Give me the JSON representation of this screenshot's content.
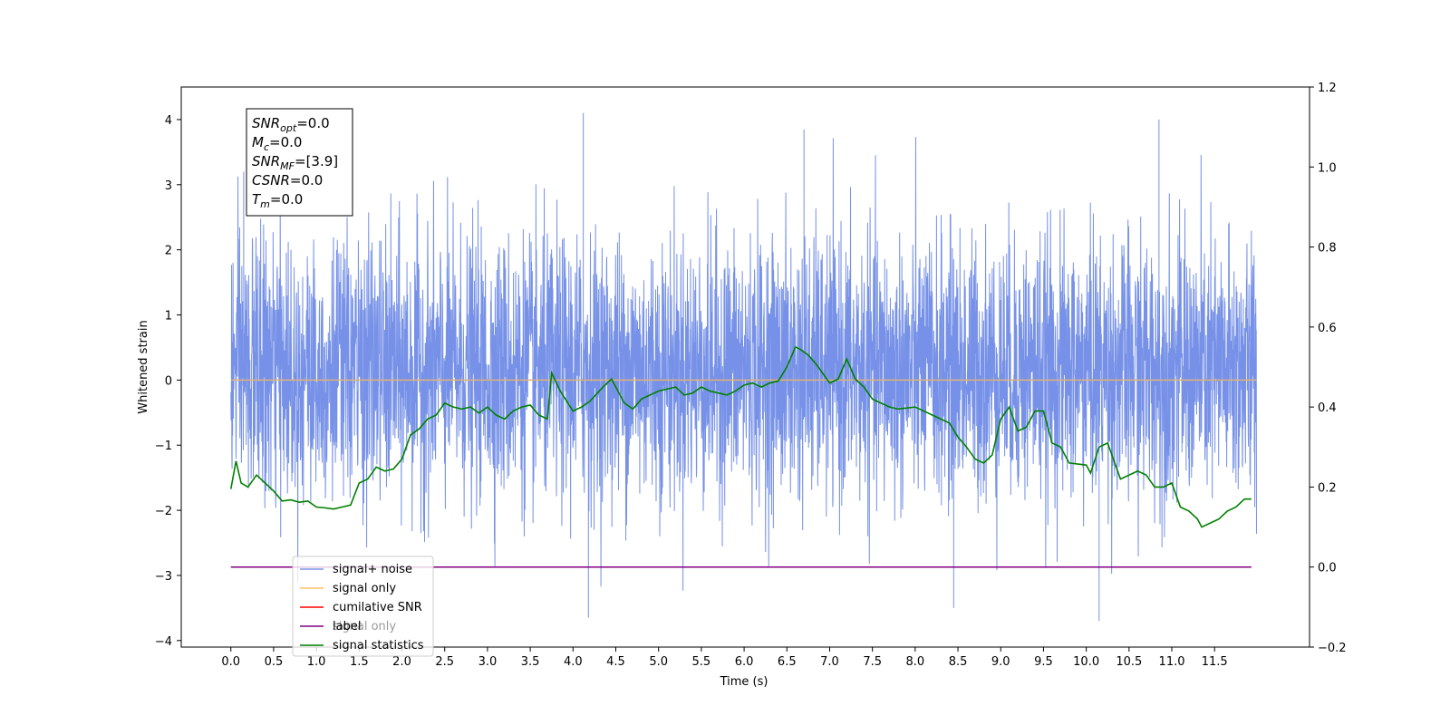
{
  "chart_data": {
    "type": "line",
    "xlabel": "Time (s)",
    "ylabel": "Whitened strain",
    "xlim": [
      -0.58,
      12.61
    ],
    "ylim": [
      -4.1,
      4.5
    ],
    "y2lim": [
      -0.2,
      1.2
    ],
    "x_ticks": [
      "0.0",
      "0.5",
      "1.0",
      "1.5",
      "2.0",
      "2.5",
      "3.0",
      "3.5",
      "4.0",
      "4.5",
      "5.0",
      "5.5",
      "6.0",
      "6.5",
      "7.0",
      "7.5",
      "8.0",
      "8.5",
      "9.0",
      "9.5",
      "10.0",
      "10.5",
      "11.0",
      "11.5"
    ],
    "y_ticks": [
      "4",
      "3",
      "2",
      "1",
      "0",
      "−1",
      "−2",
      "−3",
      "−4"
    ],
    "y2_ticks": [
      "1.2",
      "1.0",
      "0.8",
      "0.6",
      "0.4",
      "0.2",
      "0.0",
      "−0.2"
    ],
    "annotation": [
      {
        "base": "SNR",
        "sub": "opt",
        "rest": "=0.0"
      },
      {
        "base": "M",
        "sub": "c",
        "rest": "=0.0"
      },
      {
        "base": "SNR",
        "sub": "MF",
        "rest": "=[3.9]"
      },
      {
        "base": "CSNR",
        "sub": "",
        "rest": "=0.0"
      },
      {
        "base": "T",
        "sub": "m",
        "rest": "=0.0"
      }
    ],
    "legend": {
      "location": "lower-left",
      "entries": [
        {
          "label": "signal+ noise",
          "color": "#7b94e6"
        },
        {
          "label": "signal only",
          "color": "#ffbf66"
        },
        {
          "label": "cumilative SNR",
          "color": "#ff0000"
        },
        {
          "label": "label",
          "color": "#800080"
        },
        {
          "label": "signal statistics",
          "color": "#008000"
        }
      ],
      "hidden_entry": "signal only"
    },
    "series": [
      {
        "name": "signal+ noise",
        "axis": "left",
        "color": "#6f8be6",
        "x_range": [
          0.0,
          11.99
        ],
        "description_envelope": "noise fluctuating roughly between -3.6 and 4.1",
        "notable_spikes": [
          [
            4.12,
            4.1
          ],
          [
            10.85,
            4.0
          ],
          [
            6.7,
            3.85
          ],
          [
            0.15,
            3.2
          ],
          [
            4.18,
            -3.65
          ],
          [
            10.15,
            -3.7
          ],
          [
            8.45,
            -3.5
          ]
        ]
      },
      {
        "name": "signal only",
        "axis": "left",
        "color": "#e0b27a",
        "x": [
          0.0,
          11.99
        ],
        "y": [
          0.0,
          0.0
        ]
      },
      {
        "name": "label",
        "axis": "right",
        "color": "#800080",
        "x": [
          0.0,
          11.93
        ],
        "y": [
          0.0,
          0.0
        ]
      },
      {
        "name": "signal statistics",
        "axis": "right",
        "color": "#008000",
        "x": [
          0.0,
          0.06,
          0.12,
          0.2,
          0.3,
          0.4,
          0.5,
          0.6,
          0.7,
          0.8,
          0.9,
          1.0,
          1.1,
          1.2,
          1.3,
          1.4,
          1.5,
          1.6,
          1.7,
          1.8,
          1.9,
          2.0,
          2.1,
          2.2,
          2.3,
          2.4,
          2.5,
          2.6,
          2.7,
          2.8,
          2.9,
          3.0,
          3.1,
          3.2,
          3.3,
          3.4,
          3.5,
          3.6,
          3.7,
          3.75,
          3.85,
          4.0,
          4.1,
          4.2,
          4.35,
          4.45,
          4.6,
          4.7,
          4.8,
          5.0,
          5.1,
          5.2,
          5.3,
          5.4,
          5.5,
          5.6,
          5.7,
          5.8,
          5.9,
          6.0,
          6.1,
          6.2,
          6.3,
          6.4,
          6.5,
          6.6,
          6.65,
          6.75,
          6.85,
          7.0,
          7.1,
          7.2,
          7.3,
          7.4,
          7.5,
          7.6,
          7.7,
          7.8,
          8.0,
          8.2,
          8.4,
          8.5,
          8.6,
          8.7,
          8.8,
          8.9,
          9.0,
          9.1,
          9.2,
          9.3,
          9.4,
          9.5,
          9.6,
          9.7,
          9.8,
          10.0,
          10.05,
          10.15,
          10.25,
          10.4,
          10.6,
          10.7,
          10.8,
          10.9,
          11.0,
          11.1,
          11.2,
          11.3,
          11.35,
          11.45,
          11.55,
          11.65,
          11.75,
          11.85,
          11.93
        ],
        "y": [
          0.195,
          0.265,
          0.21,
          0.2,
          0.23,
          0.21,
          0.19,
          0.165,
          0.168,
          0.162,
          0.165,
          0.15,
          0.148,
          0.145,
          0.15,
          0.155,
          0.21,
          0.22,
          0.25,
          0.24,
          0.245,
          0.27,
          0.33,
          0.345,
          0.37,
          0.38,
          0.41,
          0.4,
          0.395,
          0.4,
          0.385,
          0.4,
          0.38,
          0.37,
          0.39,
          0.4,
          0.405,
          0.38,
          0.37,
          0.485,
          0.44,
          0.39,
          0.4,
          0.415,
          0.45,
          0.47,
          0.41,
          0.395,
          0.42,
          0.44,
          0.445,
          0.45,
          0.43,
          0.435,
          0.45,
          0.44,
          0.435,
          0.43,
          0.44,
          0.455,
          0.46,
          0.45,
          0.46,
          0.465,
          0.5,
          0.55,
          0.545,
          0.53,
          0.505,
          0.46,
          0.47,
          0.52,
          0.47,
          0.45,
          0.42,
          0.41,
          0.4,
          0.395,
          0.4,
          0.38,
          0.36,
          0.325,
          0.3,
          0.27,
          0.26,
          0.28,
          0.37,
          0.4,
          0.34,
          0.35,
          0.39,
          0.39,
          0.31,
          0.3,
          0.26,
          0.255,
          0.235,
          0.3,
          0.31,
          0.22,
          0.24,
          0.23,
          0.2,
          0.2,
          0.21,
          0.15,
          0.14,
          0.12,
          0.1,
          0.11,
          0.12,
          0.14,
          0.15,
          0.17,
          0.17
        ]
      }
    ]
  }
}
